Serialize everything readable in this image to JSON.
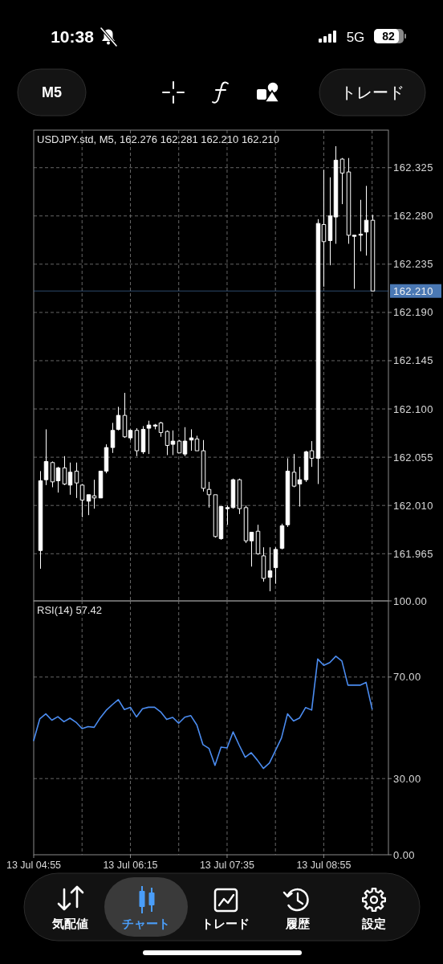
{
  "chart_data": [
    {
      "type": "other",
      "annotations": [
        "10:38",
        "5G",
        "82",
        "M5",
        "トレード"
      ]
    },
    {
      "type": "candlestick",
      "title": "USDJPY.std, M5, 162.276 162.281 162.210 162.210",
      "color": "#ffffff",
      "categories": [
        "13 Jul 04:55",
        null,
        null,
        null,
        null,
        null,
        null,
        null,
        null,
        null,
        null,
        null,
        null,
        null,
        null,
        null,
        "13 Jul 06:15",
        null,
        null,
        null,
        null,
        null,
        null,
        null,
        null,
        null,
        null,
        null,
        null,
        null,
        null,
        null,
        "13 Jul 07:35",
        null,
        null,
        null,
        null,
        null,
        null,
        null,
        null,
        null,
        null,
        null,
        null,
        null,
        null,
        null,
        "13 Jul 08:55",
        null,
        null,
        null,
        null,
        null,
        null,
        null,
        null
      ],
      "ohlc": [
        null,
        [
          161.968,
          162.042,
          161.951,
          162.033
        ],
        [
          162.034,
          162.081,
          162.029,
          162.051
        ],
        [
          162.05,
          162.051,
          162.027,
          162.032
        ],
        [
          162.033,
          162.046,
          162.022,
          162.045
        ],
        [
          162.045,
          162.056,
          162.029,
          162.03
        ],
        [
          162.029,
          162.05,
          162.02,
          162.041
        ],
        [
          162.042,
          162.05,
          162.017,
          162.031
        ],
        [
          162.029,
          162.03,
          161.999,
          162.015
        ],
        [
          162.014,
          162.02,
          162.001,
          162.02
        ],
        [
          162.019,
          162.034,
          162.007,
          162.017
        ],
        [
          162.017,
          162.042,
          162.017,
          162.042
        ],
        [
          162.042,
          162.067,
          162.04,
          162.064
        ],
        [
          162.064,
          162.087,
          162.059,
          162.08
        ],
        [
          162.081,
          162.102,
          162.08,
          162.094
        ],
        [
          162.094,
          162.115,
          162.073,
          162.074
        ],
        [
          162.073,
          162.081,
          162.071,
          162.08
        ],
        [
          162.08,
          162.082,
          162.056,
          162.061
        ],
        [
          162.06,
          162.084,
          162.058,
          162.081
        ],
        [
          162.082,
          162.089,
          162.058,
          162.085
        ],
        [
          162.084,
          162.086,
          162.081,
          162.085
        ],
        [
          162.087,
          162.088,
          162.074,
          162.078
        ],
        [
          162.079,
          162.08,
          162.057,
          162.066
        ],
        [
          162.067,
          162.08,
          162.057,
          162.07
        ],
        [
          162.07,
          162.071,
          162.059,
          162.059
        ],
        [
          162.058,
          162.083,
          162.056,
          162.07
        ],
        [
          162.071,
          162.081,
          162.061,
          162.073
        ],
        [
          162.072,
          162.075,
          162.061,
          162.061
        ],
        [
          162.061,
          162.071,
          162.023,
          162.026
        ],
        [
          162.025,
          162.032,
          162.008,
          162.02
        ],
        [
          162.02,
          162.02,
          161.98,
          161.981
        ],
        [
          161.979,
          162.009,
          161.978,
          162.009
        ],
        [
          162.007,
          162.01,
          161.992,
          162.008
        ],
        [
          162.008,
          162.035,
          162.007,
          162.034
        ],
        [
          162.034,
          162.035,
          162.002,
          162.007
        ],
        [
          162.008,
          162.01,
          161.975,
          161.977
        ],
        [
          161.977,
          161.985,
          161.953,
          161.985
        ],
        [
          161.986,
          161.992,
          161.964,
          161.965
        ],
        [
          161.963,
          161.971,
          161.939,
          161.942
        ],
        [
          161.943,
          161.971,
          161.93,
          161.949
        ],
        [
          161.952,
          161.971,
          161.937,
          161.969
        ],
        [
          161.97,
          161.993,
          161.969,
          161.991
        ],
        [
          161.992,
          162.054,
          161.99,
          162.042
        ],
        [
          162.041,
          162.058,
          162.027,
          162.028
        ],
        [
          162.03,
          162.046,
          162.009,
          162.034
        ],
        [
          162.034,
          162.061,
          162.032,
          162.06
        ],
        [
          162.061,
          162.07,
          162.046,
          162.054
        ],
        [
          162.054,
          162.277,
          162.03,
          162.273
        ],
        [
          162.272,
          162.323,
          162.214,
          162.256
        ],
        [
          162.257,
          162.316,
          162.234,
          162.28
        ],
        [
          162.279,
          162.345,
          162.254,
          162.332
        ],
        [
          162.333,
          162.334,
          162.291,
          162.32
        ],
        [
          162.321,
          162.334,
          162.254,
          162.262
        ],
        [
          162.261,
          162.262,
          162.212,
          162.262
        ],
        [
          162.262,
          162.295,
          162.247,
          162.263
        ],
        [
          162.265,
          162.308,
          162.243,
          162.276
        ],
        [
          162.276,
          162.281,
          162.21,
          162.21
        ]
      ],
      "ylim": [
        161.921,
        162.36
      ],
      "yticks": [
        161.965,
        {
          "value": 162.01,
          "label": "162.010"
        },
        162.055,
        {
          "value": 162.1,
          "label": "162.100"
        },
        162.145,
        {
          "value": 162.19,
          "label": "162.190"
        },
        162.235,
        {
          "value": 162.28,
          "label": "162.280"
        },
        162.325
      ],
      "grid": true,
      "tick_labels": "y",
      "ref_lines": [
        {
          "axis": "y",
          "value": 162.21,
          "label": "162.210",
          "color": "#4a78b4"
        }
      ]
    },
    {
      "type": "line",
      "title": "RSI(14) 57.42",
      "color": "#4b8cf0",
      "categories": [
        "13 Jul 04:55",
        null,
        null,
        null,
        null,
        null,
        null,
        null,
        null,
        null,
        null,
        null,
        null,
        null,
        null,
        null,
        "13 Jul 06:15",
        null,
        null,
        null,
        null,
        null,
        null,
        null,
        null,
        null,
        null,
        null,
        null,
        null,
        null,
        null,
        "13 Jul 07:35",
        null,
        null,
        null,
        null,
        null,
        null,
        null,
        null,
        null,
        null,
        null,
        null,
        null,
        null,
        null,
        "13 Jul 08:55",
        null,
        null,
        null,
        null,
        null,
        null,
        null,
        null
      ],
      "values": [
        45.0,
        53.5,
        55.5,
        53.0,
        54.4,
        52.4,
        53.8,
        52.2,
        49.7,
        50.5,
        50.2,
        53.9,
        56.9,
        59.1,
        61.1,
        57.2,
        58.1,
        54.3,
        57.5,
        58.1,
        58.1,
        56.3,
        53.3,
        54.1,
        51.8,
        54.2,
        54.8,
        51.1,
        43.4,
        41.9,
        35.2,
        42.4,
        42.1,
        48.4,
        43.2,
        38.4,
        40.2,
        37.3,
        34.0,
        36.1,
        41.0,
        46.0,
        55.5,
        52.7,
        53.9,
        58.0,
        57.0,
        77.1,
        74.6,
        75.7,
        78.2,
        76.3,
        66.8,
        66.8,
        66.8,
        67.9,
        57.4
      ],
      "ylim": [
        0,
        100
      ],
      "yticks": [
        {
          "value": 0,
          "label": "0.00"
        },
        {
          "value": 30,
          "label": "30.00"
        },
        {
          "value": 70,
          "label": "70.00"
        },
        {
          "value": 100,
          "label": "100.00"
        }
      ],
      "grid": true
    },
    {
      "type": "other",
      "annotations": [
        "気配値",
        "チャート",
        "トレード",
        "履歴",
        "設定"
      ]
    }
  ]
}
